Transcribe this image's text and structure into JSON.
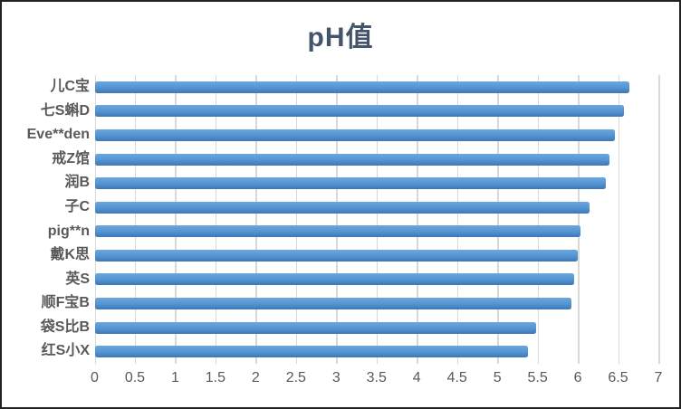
{
  "page": {
    "background": "#ffffff",
    "border_color": "#232323"
  },
  "chart_data": {
    "type": "bar",
    "orientation": "horizontal",
    "title": "pH值",
    "categories": [
      "儿C宝",
      "七S蝌D",
      "Eve**den",
      "戒Z馆",
      "润B",
      "子C",
      "pig**n",
      "戴K思",
      "英S",
      "顺F宝B",
      "袋S比B",
      "红S小X"
    ],
    "values": [
      6.64,
      6.57,
      6.46,
      6.39,
      6.35,
      6.14,
      6.03,
      6.0,
      5.95,
      5.92,
      5.48,
      5.38
    ],
    "xlabel": "",
    "ylabel": "",
    "xlim": [
      0,
      7
    ],
    "xticks": [
      0,
      0.5,
      1,
      1.5,
      2,
      2.5,
      3,
      3.5,
      4,
      4.5,
      5,
      5.5,
      6,
      6.5,
      7
    ],
    "xtick_labels": [
      "0",
      "0.5",
      "1",
      "1.5",
      "2",
      "2.5",
      "3",
      "3.5",
      "4",
      "4.5",
      "5",
      "5.5",
      "6",
      "6.5",
      "7"
    ],
    "grid": "vertical",
    "legend": "none",
    "data_labels": "none",
    "title_color": "#44546A",
    "axis_label_color": "#595959",
    "gridline_color": "#D9D9D9",
    "bar_gradient_top": "#6CA6DD",
    "bar_gradient_mid": "#5394D1",
    "bar_gradient_bottom": "#3E77B6"
  }
}
